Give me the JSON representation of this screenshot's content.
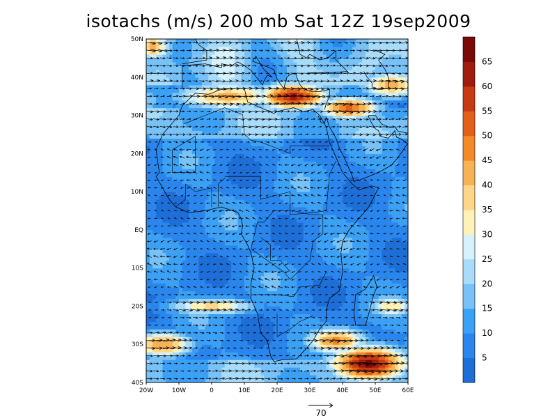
{
  "title": "isotachs (m/s) 200 mb Sat 12Z 19sep2009",
  "map": {
    "lon_range": [
      -20,
      60
    ],
    "lat_range": [
      -40,
      50
    ],
    "lon_ticks": [
      {
        "value": -20,
        "label": "20W"
      },
      {
        "value": -10,
        "label": "10W"
      },
      {
        "value": 0,
        "label": "0"
      },
      {
        "value": 10,
        "label": "10E"
      },
      {
        "value": 20,
        "label": "20E"
      },
      {
        "value": 30,
        "label": "30E"
      },
      {
        "value": 40,
        "label": "40E"
      },
      {
        "value": 50,
        "label": "50E"
      },
      {
        "value": 60,
        "label": "60E"
      }
    ],
    "lat_ticks": [
      {
        "value": 50,
        "label": "50N"
      },
      {
        "value": 40,
        "label": "40N"
      },
      {
        "value": 30,
        "label": "30N"
      },
      {
        "value": 20,
        "label": "20N"
      },
      {
        "value": 10,
        "label": "10N"
      },
      {
        "value": 0,
        "label": "EQ"
      },
      {
        "value": -10,
        "label": "10S"
      },
      {
        "value": -20,
        "label": "20S"
      },
      {
        "value": -30,
        "label": "30S"
      },
      {
        "value": -40,
        "label": "40S"
      }
    ],
    "jets": [
      {
        "lon": 25,
        "lat": 35,
        "peak": 62,
        "lon_spread": 9,
        "lat_spread": 3
      },
      {
        "lon": 42,
        "lat": 32,
        "peak": 52,
        "lon_spread": 8,
        "lat_spread": 2.5
      },
      {
        "lon": 5,
        "lat": 35,
        "peak": 42,
        "lon_spread": 14,
        "lat_spread": 3
      },
      {
        "lon": 55,
        "lat": 38,
        "peak": 42,
        "lon_spread": 8,
        "lat_spread": 3
      },
      {
        "lon": -18,
        "lat": 48,
        "peak": 42,
        "lon_spread": 5,
        "lat_spread": 3
      },
      {
        "lon": 48,
        "lat": -35,
        "peak": 66,
        "lon_spread": 10,
        "lat_spread": 4
      },
      {
        "lon": 38,
        "lat": -29,
        "peak": 47,
        "lon_spread": 8,
        "lat_spread": 3
      },
      {
        "lon": -15,
        "lat": -30,
        "peak": 45,
        "lon_spread": 8,
        "lat_spread": 3
      },
      {
        "lon": 0,
        "lat": -20,
        "peak": 37,
        "lon_spread": 12,
        "lat_spread": 2
      },
      {
        "lon": 55,
        "lat": -20,
        "peak": 36,
        "lon_spread": 6,
        "lat_spread": 2.5
      }
    ],
    "colors": {
      "land_outline": "#000000",
      "vector": "#000000"
    }
  },
  "colorbar": {
    "levels": [
      5,
      10,
      15,
      20,
      25,
      30,
      35,
      40,
      45,
      50,
      55,
      60,
      65
    ],
    "colors": [
      "#1e6ed8",
      "#2a86ec",
      "#3ca0f4",
      "#78c2f8",
      "#a8dcfa",
      "#d6f2fc",
      "#fff2b8",
      "#fdd68a",
      "#f8b256",
      "#f28a26",
      "#e4601a",
      "#c83a14",
      "#a01c0e",
      "#7a0a06"
    ]
  },
  "reference_vector": {
    "label": "70",
    "value": 70
  }
}
